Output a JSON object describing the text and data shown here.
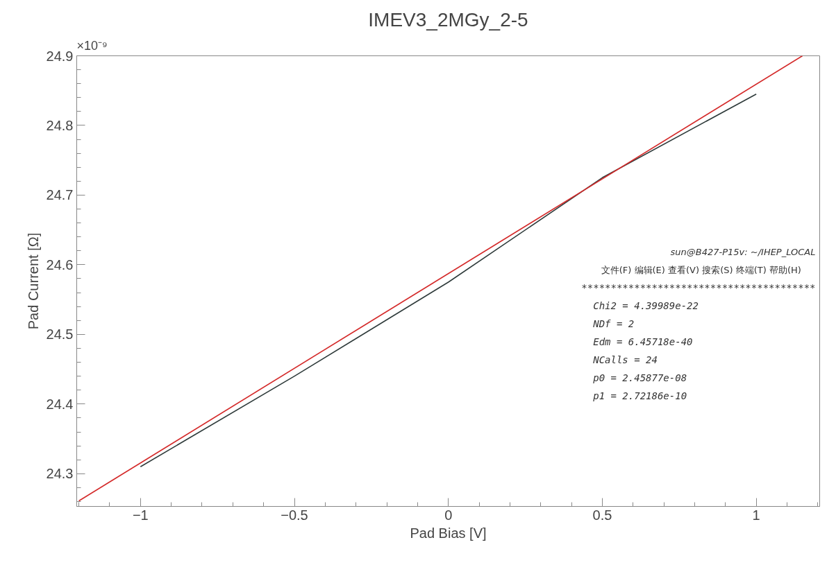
{
  "chart_data": {
    "type": "line",
    "title": "IMEV3_2MGy_2-5",
    "xlabel": "Pad Bias [V]",
    "ylabel": "Pad Current [Ω]",
    "xlim": [
      -1.207,
      1.206
    ],
    "ylim": [
      24.253,
      24.9
    ],
    "xticks": [
      {
        "value": -1,
        "label": "−1"
      },
      {
        "value": -0.5,
        "label": "−0.5"
      },
      0,
      0.5,
      1
    ],
    "yticks": [
      24.3,
      24.4,
      24.5,
      24.6,
      24.7,
      24.8,
      24.9
    ],
    "grid": false,
    "marker": "none",
    "line_style": "solid",
    "series": [
      {
        "color": "#2f3b3b",
        "x": [
          -1,
          -0.5,
          0,
          0.5,
          1
        ],
        "values": [
          24.31,
          24.44,
          24.575,
          24.725,
          24.845
        ]
      },
      {
        "color": "#d42a2a",
        "x": [
          -1.2,
          1.15
        ],
        "values": [
          24.261,
          24.9
        ]
      }
    ],
    "annotations": [
      "×10⁻⁹",
      "sun@B427-P15v: ~/IHEP_LOCAL",
      "文件(F)  编辑(E)  查看(V)  搜索(S)  终端(T)  帮助(H)",
      "****************************************",
      "Chi2                    =  4.39989e-22",
      "NDf                     =            2",
      "Edm                     =  6.45718e-40",
      "NCalls                  =           24",
      "p0                      =  2.45877e-08",
      "p1                      =  2.72186e-10"
    ]
  }
}
